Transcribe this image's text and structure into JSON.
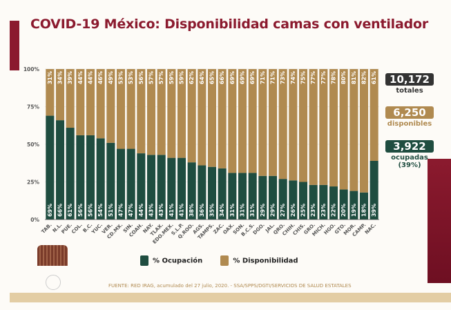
{
  "title": "COVID-19 México: Disponibilidad camas con ventilador",
  "stats": {
    "total": {
      "value": "10,172",
      "label": "totales",
      "color": "#333333"
    },
    "available": {
      "value": "6,250",
      "label": "disponibles",
      "color": "#b08a50"
    },
    "occupied": {
      "value": "3,922",
      "label": "ocupadas",
      "pct": "(39%)",
      "color": "#1f4d40"
    }
  },
  "legend": {
    "occupied": "% Ocupación",
    "available": "% Disponibilidad"
  },
  "source": "FUENTE: RED IRAG, acumulado del 27 julio, 2020. -  SSA/SPPS/DGTI/SERVICIOS DE SALUD ESTATALES",
  "chart_data": {
    "type": "bar",
    "stacked": true,
    "ylim": [
      0,
      100
    ],
    "yticks": [
      "0%",
      "25%",
      "50%",
      "75%",
      "100%"
    ],
    "categories": [
      "TAB.",
      "N.L.",
      "PUE.",
      "COL.",
      "B.C.",
      "YUC.",
      "VER.",
      "CD.MX.",
      "SIN.",
      "COAH.",
      "NAY.",
      "TLAX.",
      "EDO.MEX.",
      "S.L.P.",
      "Q.ROO.",
      "AGS.",
      "TAMPS.",
      "ZAC.",
      "OAX.",
      "SON.",
      "B.C.S.",
      "DGO.",
      "JAL.",
      "QRO.",
      "CHIH.",
      "CHIS.",
      "GRO.",
      "MICH.",
      "HGO.",
      "GTO.",
      "MOR.",
      "CAMP.",
      "NAC."
    ],
    "series": [
      {
        "name": "% Ocupación",
        "color": "#1f4d40",
        "values": [
          69,
          66,
          61,
          56,
          56,
          54,
          51,
          47,
          47,
          44,
          43,
          43,
          41,
          41,
          38,
          36,
          35,
          34,
          31,
          31,
          31,
          29,
          29,
          27,
          26,
          25,
          23,
          23,
          22,
          20,
          19,
          18,
          39
        ]
      },
      {
        "name": "% Disponibilidad",
        "color": "#b08a50",
        "values": [
          31,
          34,
          39,
          44,
          44,
          46,
          49,
          53,
          53,
          56,
          57,
          57,
          59,
          59,
          62,
          64,
          65,
          66,
          69,
          69,
          69,
          71,
          71,
          73,
          74,
          75,
          77,
          77,
          78,
          80,
          81,
          82,
          61
        ]
      }
    ],
    "legend": "bottom"
  }
}
